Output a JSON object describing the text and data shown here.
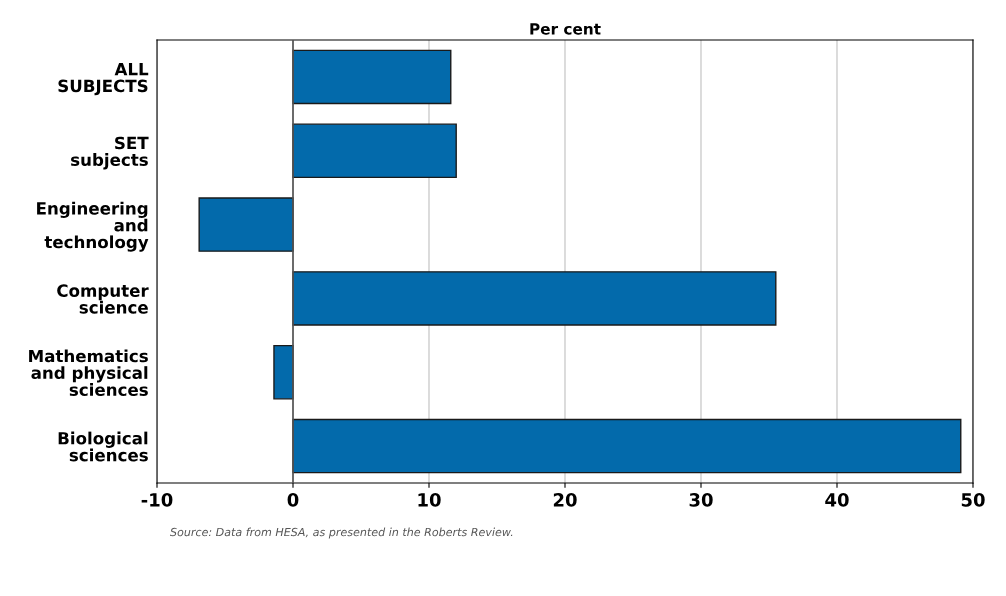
{
  "chart_data": {
    "type": "bar",
    "orientation": "horizontal",
    "xlabel": "Per cent",
    "categories": [
      "ALL\nSUBJECTS",
      "SET\nsubjects",
      "Engineering\nand\ntechnology",
      "Computer\nscience",
      "Mathematics\nand physical\nsciences",
      "Biological\nsciences"
    ],
    "values": [
      11.6,
      12.0,
      -6.9,
      35.5,
      -1.4,
      49.1
    ],
    "color": "#036aab",
    "xlim": [
      -10,
      50
    ],
    "xticks": [
      -10,
      0,
      10,
      20,
      30,
      40,
      50
    ],
    "grid": "x",
    "annotations": [
      "Source: Data from HESA, as presented in the Roberts Review."
    ]
  }
}
